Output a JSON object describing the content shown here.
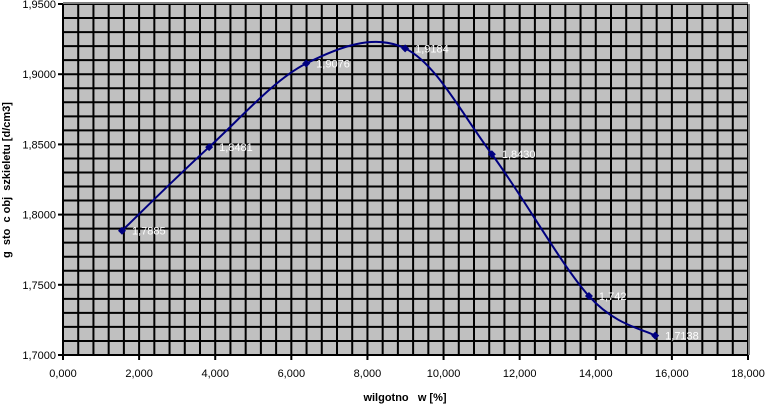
{
  "chart_data": {
    "type": "line",
    "title": "",
    "xlabel": "wilgotno   w [%]",
    "ylabel": "g  sto  c obj  szkieletu [d/cm3]",
    "xlim": [
      0,
      18000
    ],
    "ylim": [
      1.7,
      1.95
    ],
    "x_ticks": [
      "0,000",
      "2,000",
      "4,000",
      "6,000",
      "8,000",
      "10,000",
      "12,000",
      "14,000",
      "16,000",
      "18,000"
    ],
    "y_ticks": [
      "1,7000",
      "1,7500",
      "1,8000",
      "1,8500",
      "1,9000",
      "1,9500"
    ],
    "grid": true,
    "smoothed": true,
    "series": [
      {
        "x": [
          1550,
          3840,
          6390,
          8990,
          11270,
          13820,
          15560
        ],
        "y": [
          1.7885,
          1.8481,
          1.9076,
          1.9184,
          1.843,
          1.742,
          1.7138
        ],
        "labels": [
          "1,7885",
          "1,8481",
          "1,9076",
          "1,9184",
          "1,8430",
          "1,742",
          "1,7138"
        ]
      }
    ],
    "colors": {
      "line": "#000080",
      "plot_bg": "#c0c0c0",
      "grid": "#000000",
      "label_text": "#ffffff"
    }
  }
}
